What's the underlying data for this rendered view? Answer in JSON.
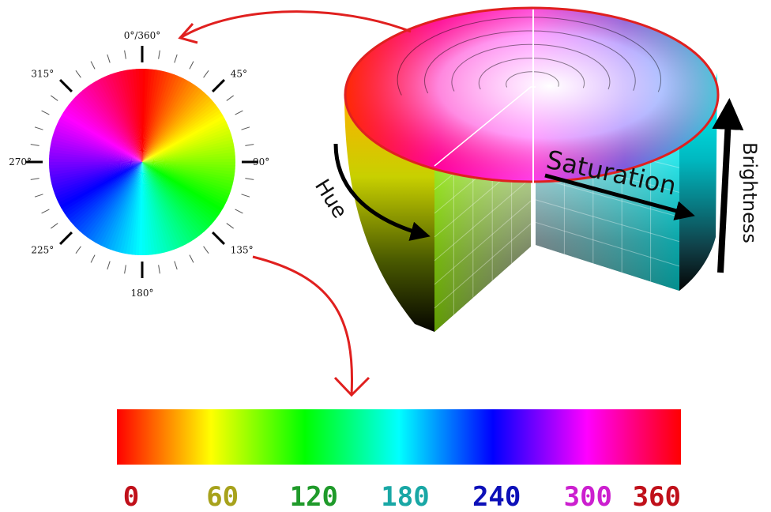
{
  "wheel": {
    "labels": [
      {
        "angle": 0,
        "text": "0°/360°"
      },
      {
        "angle": 45,
        "text": "45°"
      },
      {
        "angle": 90,
        "text": "90°"
      },
      {
        "angle": 135,
        "text": "135°"
      },
      {
        "angle": 180,
        "text": "180°"
      },
      {
        "angle": 225,
        "text": "225°"
      },
      {
        "angle": 270,
        "text": "270°"
      },
      {
        "angle": 315,
        "text": "315°"
      }
    ],
    "ring_colors": [
      "#ff0000",
      "#ffff00",
      "#00ff00",
      "#00ffff",
      "#0000ff",
      "#ff00ff",
      "#ff0000"
    ]
  },
  "cylinder": {
    "hue_label": "Hue",
    "saturation_label": "Saturation",
    "brightness_label": "Brightness"
  },
  "hue_scale": {
    "stops": [
      "#ff0000",
      "#ffff00",
      "#00ff00",
      "#00ffff",
      "#0000ff",
      "#ff00ff",
      "#ff0000"
    ],
    "labels": [
      {
        "text": "0",
        "color": "#c0101a"
      },
      {
        "text": "60",
        "color": "#a7a21c"
      },
      {
        "text": "120",
        "color": "#1f9a2a"
      },
      {
        "text": "180",
        "color": "#19a7a5"
      },
      {
        "text": "240",
        "color": "#0d10b8"
      },
      {
        "text": "300",
        "color": "#cc1fcf"
      },
      {
        "text": "360",
        "color": "#c0101a"
      }
    ]
  },
  "arrows": {
    "red_color": "#e0201f",
    "black_color": "#000000"
  }
}
